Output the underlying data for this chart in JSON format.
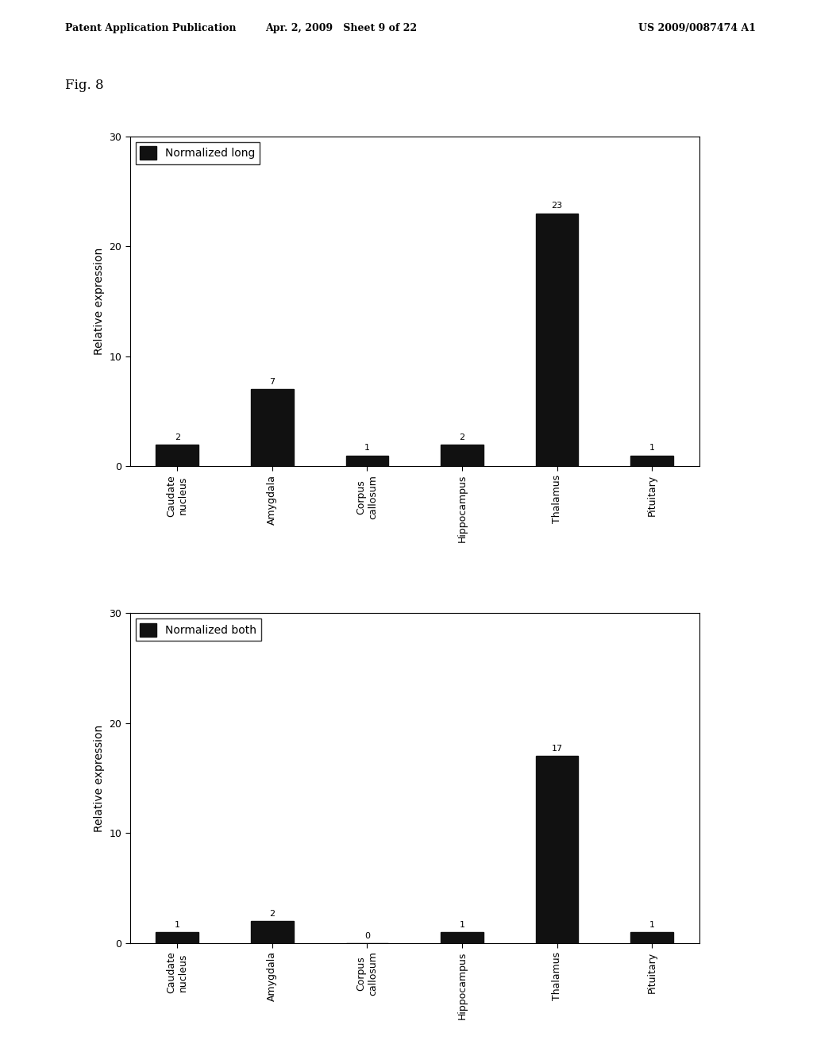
{
  "chart1": {
    "title": "Normalized long",
    "categories": [
      "Caudate\nnucleus",
      "Amygdala",
      "Corpus\ncallosum",
      "Hippocampus",
      "Thalamus",
      "Pituitary"
    ],
    "values": [
      2,
      7,
      1,
      2,
      23,
      1
    ],
    "labels": [
      "2",
      "7",
      "1",
      "2",
      "23",
      "1"
    ],
    "ylabel": "Relative expression",
    "ylim": [
      0,
      30
    ],
    "yticks": [
      0,
      10,
      20,
      30
    ]
  },
  "chart2": {
    "title": "Normalized both",
    "categories": [
      "Caudate\nnucleus",
      "Amygdala",
      "Corpus\ncallosum",
      "Hippocampus",
      "Thalamus",
      "Pituitary"
    ],
    "values": [
      1,
      2,
      0,
      1,
      17,
      1
    ],
    "labels": [
      "1",
      "2",
      "0",
      "1",
      "17",
      "1"
    ],
    "ylabel": "Relative expression",
    "ylim": [
      0,
      30
    ],
    "yticks": [
      0,
      10,
      20,
      30
    ]
  },
  "bar_color": "#111111",
  "bar_width": 0.45,
  "fig_width": 10.24,
  "fig_height": 13.2,
  "header_left": "Patent Application Publication",
  "header_center": "Apr. 2, 2009   Sheet 9 of 22",
  "header_right": "US 2009/0087474 A1",
  "fig_label": "Fig. 8",
  "background_color": "#ffffff",
  "tick_fontsize": 9,
  "ylabel_fontsize": 10,
  "annotation_fontsize": 8,
  "legend_fontsize": 10,
  "header_fontsize": 9,
  "figlabel_fontsize": 12
}
